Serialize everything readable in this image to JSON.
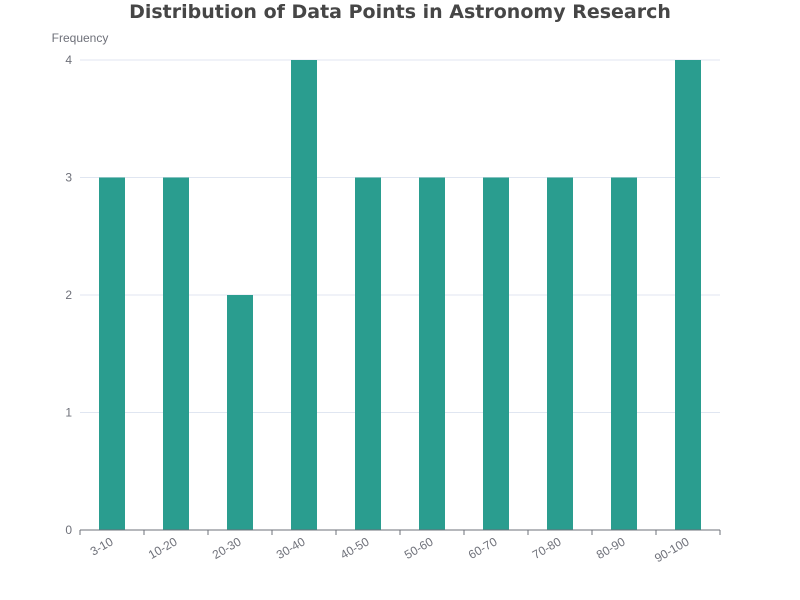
{
  "chart_data": {
    "type": "bar",
    "title": "Distribution of Data Points in Astronomy Research",
    "xlabel": "",
    "ylabel": "Frequency",
    "categories": [
      "3-10",
      "10-20",
      "20-30",
      "30-40",
      "40-50",
      "50-60",
      "60-70",
      "70-80",
      "80-90",
      "90-100"
    ],
    "values": [
      3,
      3,
      2,
      4,
      3,
      3,
      3,
      3,
      3,
      4
    ],
    "ylim": [
      0,
      4
    ],
    "yticks": [
      0,
      1,
      2,
      3,
      4
    ],
    "grid": true,
    "bar_color": "#2a9d8f"
  }
}
